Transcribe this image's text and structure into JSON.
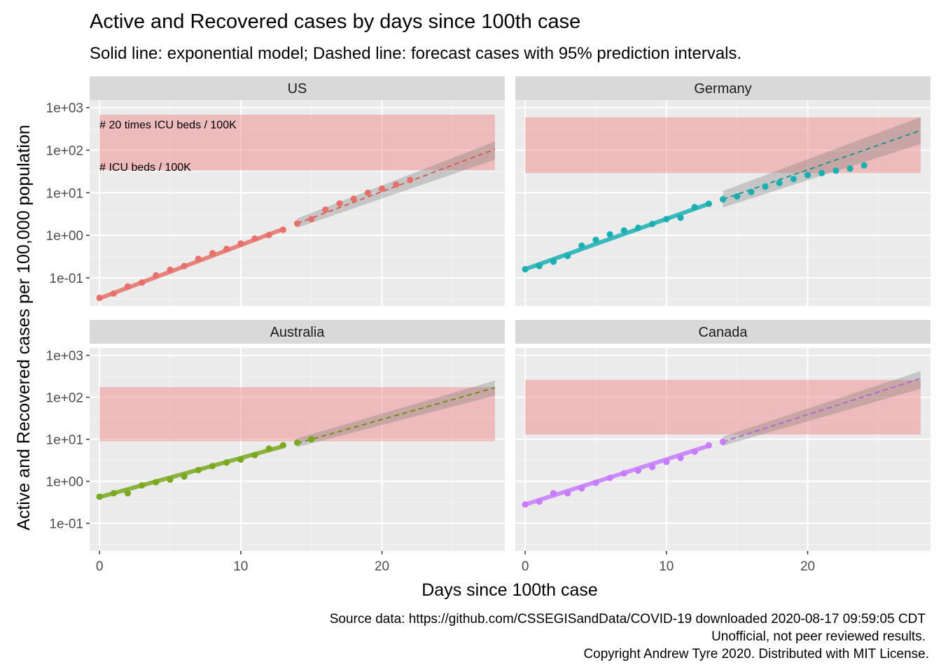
{
  "title": "Active and Recovered cases by days since 100th case",
  "subtitle": "Solid line: exponential model; Dashed line: forecast cases with 95% prediction intervals.",
  "caption": [
    "Source data: https://github.com/CSSEGISandData/COVID-19 downloaded  2020-08-17 09:59:05 CDT",
    "Unofficial, not peer reviewed results.",
    "Copyright Andrew Tyre 2020. Distributed with MIT License."
  ],
  "chart_data": {
    "type": "scatter",
    "xlabel": "Days since 100th case",
    "ylabel": "Active and Recovered cases per 100,000 population",
    "y_scale": "log10",
    "xlim": [
      -0.7,
      28.7
    ],
    "ylim": [
      0.022,
      1500
    ],
    "x_ticks": [
      0,
      10,
      20
    ],
    "x_tick_labels": [
      "0",
      "10",
      "20"
    ],
    "y_ticks": [
      0.1,
      1,
      10,
      100,
      1000
    ],
    "y_tick_labels": [
      "1e-01",
      "1e+00",
      "1e+01",
      "1e+02",
      "1e+03"
    ],
    "grid": true,
    "icu_labels": [
      "# 20 times ICU beds / 100K",
      "# ICU beds / 100K"
    ],
    "panels": [
      {
        "name": "US",
        "color": "#e8706a",
        "dashed_color": "#d9544d",
        "icu_range": [
          34,
          680
        ],
        "fit": {
          "x0": 0,
          "x1": 13,
          "y0": 0.033,
          "y1": 1.4
        },
        "forecast": {
          "x0": 14,
          "x1": 28,
          "y0": 1.9,
          "y1": 105
        },
        "band": {
          "x0": 14,
          "x1": 28,
          "lo0": 1.5,
          "hi0": 2.5,
          "lo1": 60,
          "hi1": 160
        },
        "observed": {
          "x": [
            0,
            1,
            2,
            3,
            4,
            5,
            6,
            7,
            8,
            9,
            10,
            11,
            12,
            13
          ],
          "y": [
            0.034,
            0.043,
            0.063,
            0.078,
            0.115,
            0.155,
            0.19,
            0.28,
            0.38,
            0.48,
            0.64,
            0.84,
            1.02,
            1.35
          ]
        },
        "future": {
          "x": [
            14,
            15,
            16,
            17,
            18,
            19,
            20,
            21,
            22
          ],
          "y": [
            1.9,
            2.4,
            4.0,
            5.6,
            7.2,
            10.0,
            12.5,
            15.5,
            20.0
          ]
        }
      },
      {
        "name": "Germany",
        "color": "#1ab0b3",
        "dashed_color": "#158f91",
        "icu_range": [
          29,
          590
        ],
        "fit": {
          "x0": 0,
          "x1": 13,
          "y0": 0.16,
          "y1": 5.5
        },
        "forecast": {
          "x0": 14,
          "x1": 28,
          "y0": 7.0,
          "y1": 290
        },
        "band": {
          "x0": 14,
          "x1": 28,
          "lo0": 4.5,
          "hi0": 11,
          "lo1": 140,
          "hi1": 600
        },
        "observed": {
          "x": [
            0,
            1,
            2,
            3,
            4,
            5,
            6,
            7,
            8,
            9,
            10,
            11,
            12,
            13
          ],
          "y": [
            0.16,
            0.19,
            0.24,
            0.33,
            0.57,
            0.78,
            1.05,
            1.3,
            1.5,
            1.85,
            2.4,
            2.6,
            4.6,
            5.5
          ]
        },
        "future": {
          "x": [
            14,
            15,
            16,
            17,
            18,
            19,
            20,
            21,
            22,
            23,
            24
          ],
          "y": [
            7.0,
            8.2,
            10.5,
            14.0,
            17.0,
            21.0,
            26.0,
            29.0,
            33.0,
            37.0,
            44.0
          ]
        }
      },
      {
        "name": "Australia",
        "color": "#7aa81e",
        "dashed_color": "#6b8a00",
        "icu_range": [
          9,
          175
        ],
        "fit": {
          "x0": 0,
          "x1": 13,
          "y0": 0.42,
          "y1": 6.8
        },
        "forecast": {
          "x0": 14,
          "x1": 28,
          "y0": 8.0,
          "y1": 170
        },
        "band": {
          "x0": 14,
          "x1": 28,
          "lo0": 6.5,
          "hi0": 10.5,
          "lo1": 110,
          "hi1": 250
        },
        "observed": {
          "x": [
            0,
            1,
            2,
            3,
            4,
            5,
            6,
            7,
            8,
            9,
            10,
            11,
            12,
            13
          ],
          "y": [
            0.43,
            0.52,
            0.52,
            0.8,
            0.95,
            1.1,
            1.3,
            1.85,
            2.3,
            2.8,
            3.3,
            4.2,
            6.0,
            7.2
          ]
        },
        "future": {
          "x": [
            14,
            15
          ],
          "y": [
            8.3,
            10.0
          ]
        }
      },
      {
        "name": "Canada",
        "color": "#c77cff",
        "dashed_color": "#b35fd1",
        "icu_range": [
          13,
          260
        ],
        "fit": {
          "x0": 0,
          "x1": 13,
          "y0": 0.28,
          "y1": 7.0
        },
        "forecast": {
          "x0": 14,
          "x1": 28,
          "y0": 8.7,
          "y1": 280
        },
        "band": {
          "x0": 14,
          "x1": 28,
          "lo0": 7,
          "hi0": 11.5,
          "lo1": 160,
          "hi1": 420
        },
        "observed": {
          "x": [
            0,
            1,
            2,
            3,
            4,
            5,
            6,
            7,
            8,
            9,
            10,
            11,
            12,
            13
          ],
          "y": [
            0.28,
            0.33,
            0.52,
            0.52,
            0.68,
            0.92,
            1.2,
            1.55,
            1.8,
            2.2,
            2.9,
            3.6,
            5.1,
            7.2
          ]
        },
        "future": {
          "x": [
            14
          ],
          "y": [
            8.7
          ]
        }
      }
    ]
  }
}
